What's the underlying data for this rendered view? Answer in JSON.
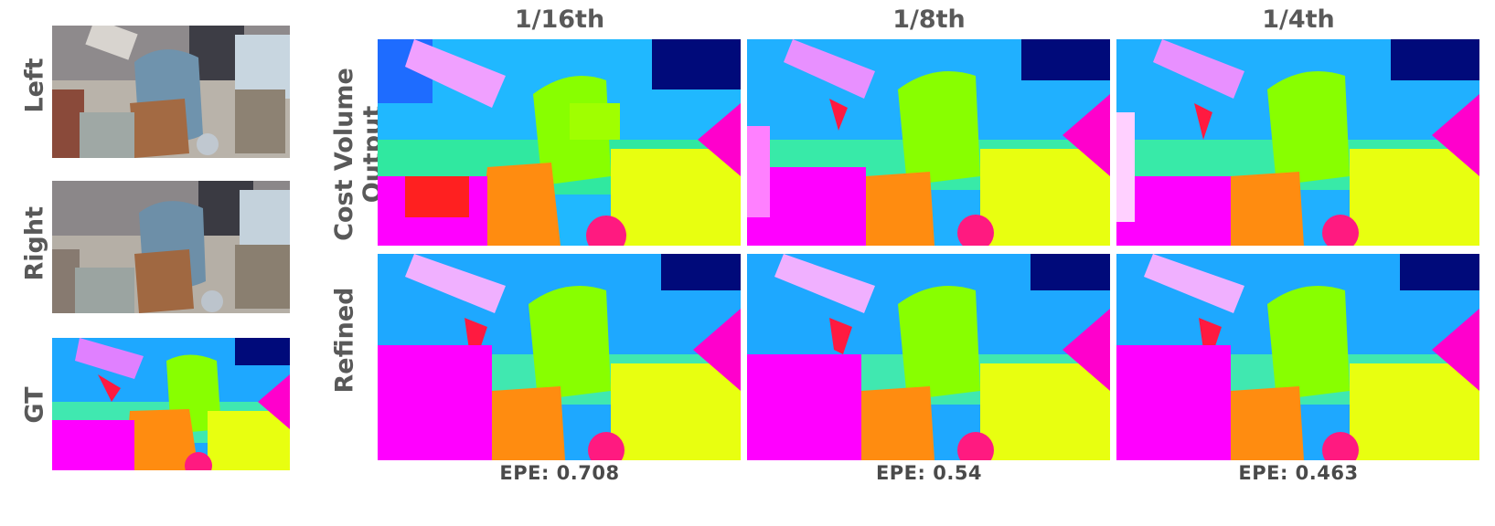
{
  "row_labels_left": [
    "Left",
    "Right",
    "GT"
  ],
  "row_labels_right": [
    "Cost Volume\nOutput",
    "Refined"
  ],
  "column_headers": [
    "1/16th",
    "1/8th",
    "1/4th"
  ],
  "epe_labels": [
    "EPE: 0.708",
    "EPE: 0.54",
    "EPE: 0.463"
  ],
  "colors": {
    "magenta": "#ff00ff",
    "green": "#88ff00",
    "cyan_blue": "#1ea8ff",
    "navy": "#000a7a",
    "orange": "#ff8c10",
    "yellow": "#e8ff10",
    "red": "#ff1a40"
  }
}
